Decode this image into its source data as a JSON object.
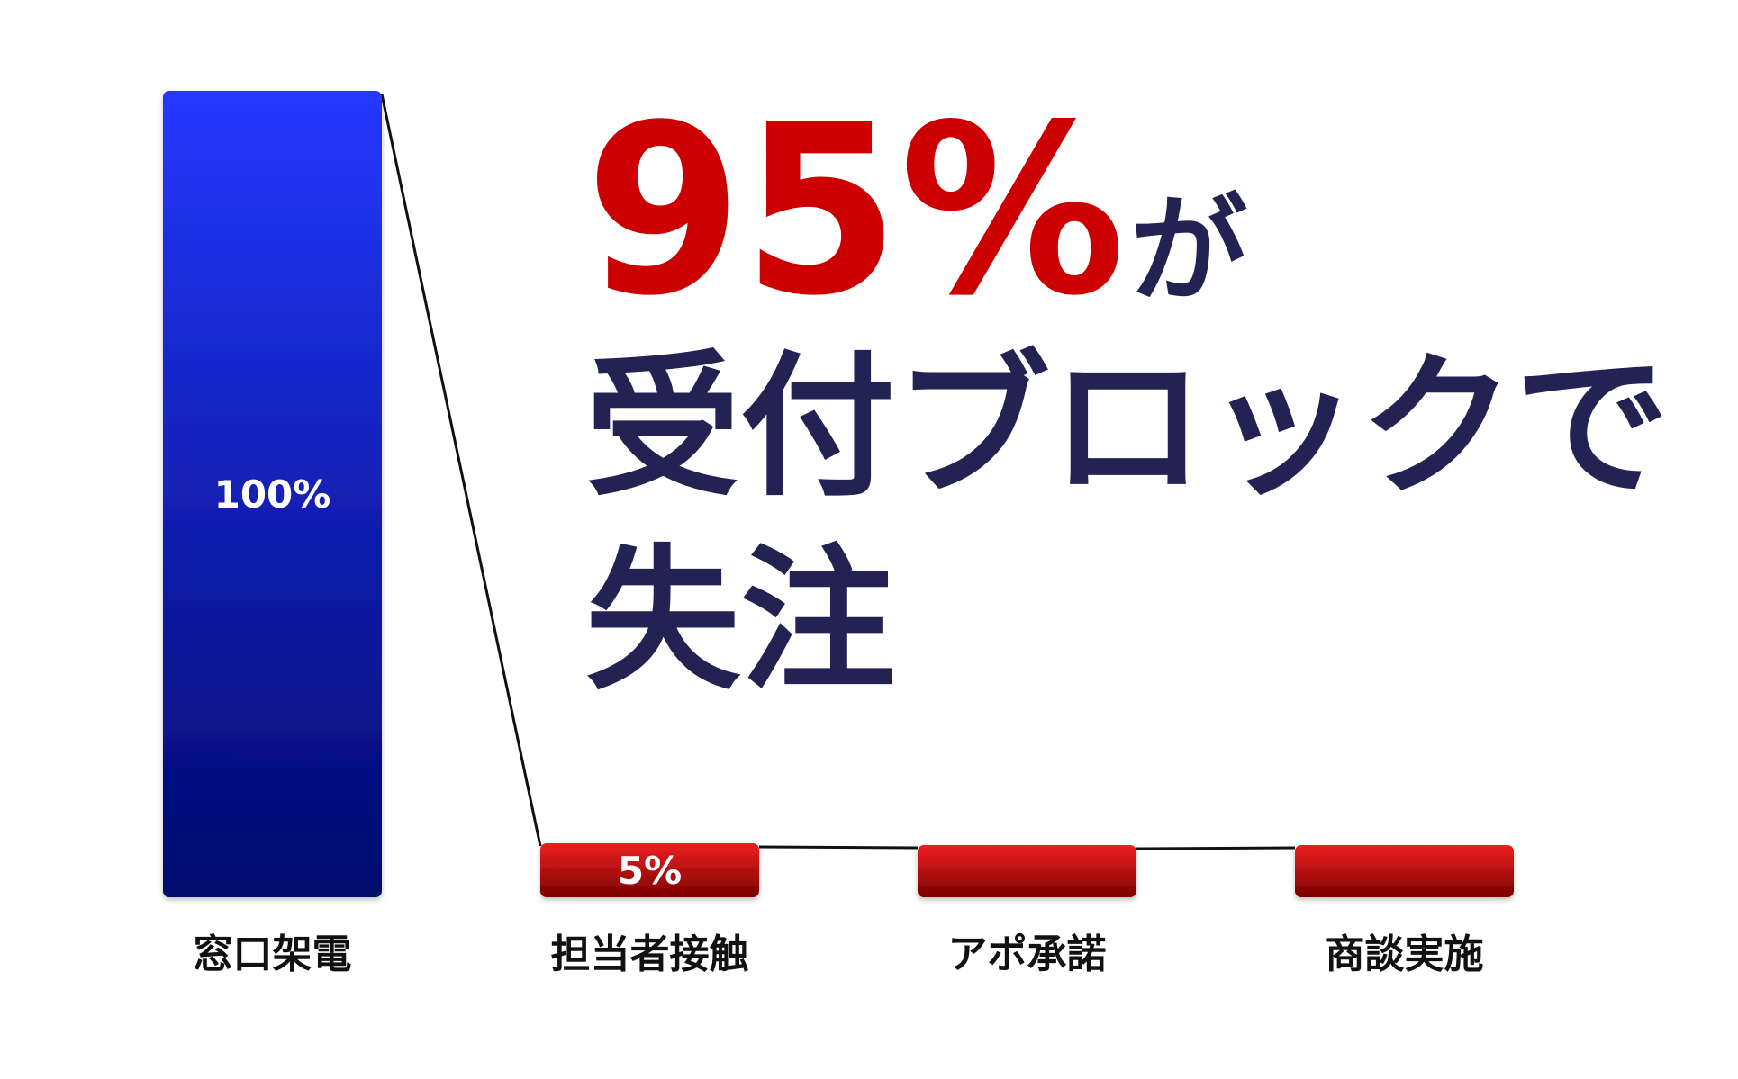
{
  "chart_data": {
    "type": "bar",
    "categories": [
      "窓口架電",
      "担当者接触",
      "アポ承諾",
      "商談実施"
    ],
    "values": [
      100,
      5,
      0,
      0
    ],
    "value_labels": [
      "100%",
      "5%",
      "",
      ""
    ],
    "ylim": [
      0,
      100
    ],
    "grid": false,
    "legend": "none",
    "colors": {
      "primary_top": "#2538ff",
      "primary_bottom": "#00086b",
      "secondary_top": "#ef2020",
      "secondary_bottom": "#7a0000",
      "connector": "#111111"
    }
  },
  "headline": {
    "percent": "95%",
    "particle": "が",
    "line2": "受付ブロックで",
    "line3": "失注"
  },
  "colors": {
    "accent_red": "#cc0000",
    "navy_text": "#232353"
  }
}
